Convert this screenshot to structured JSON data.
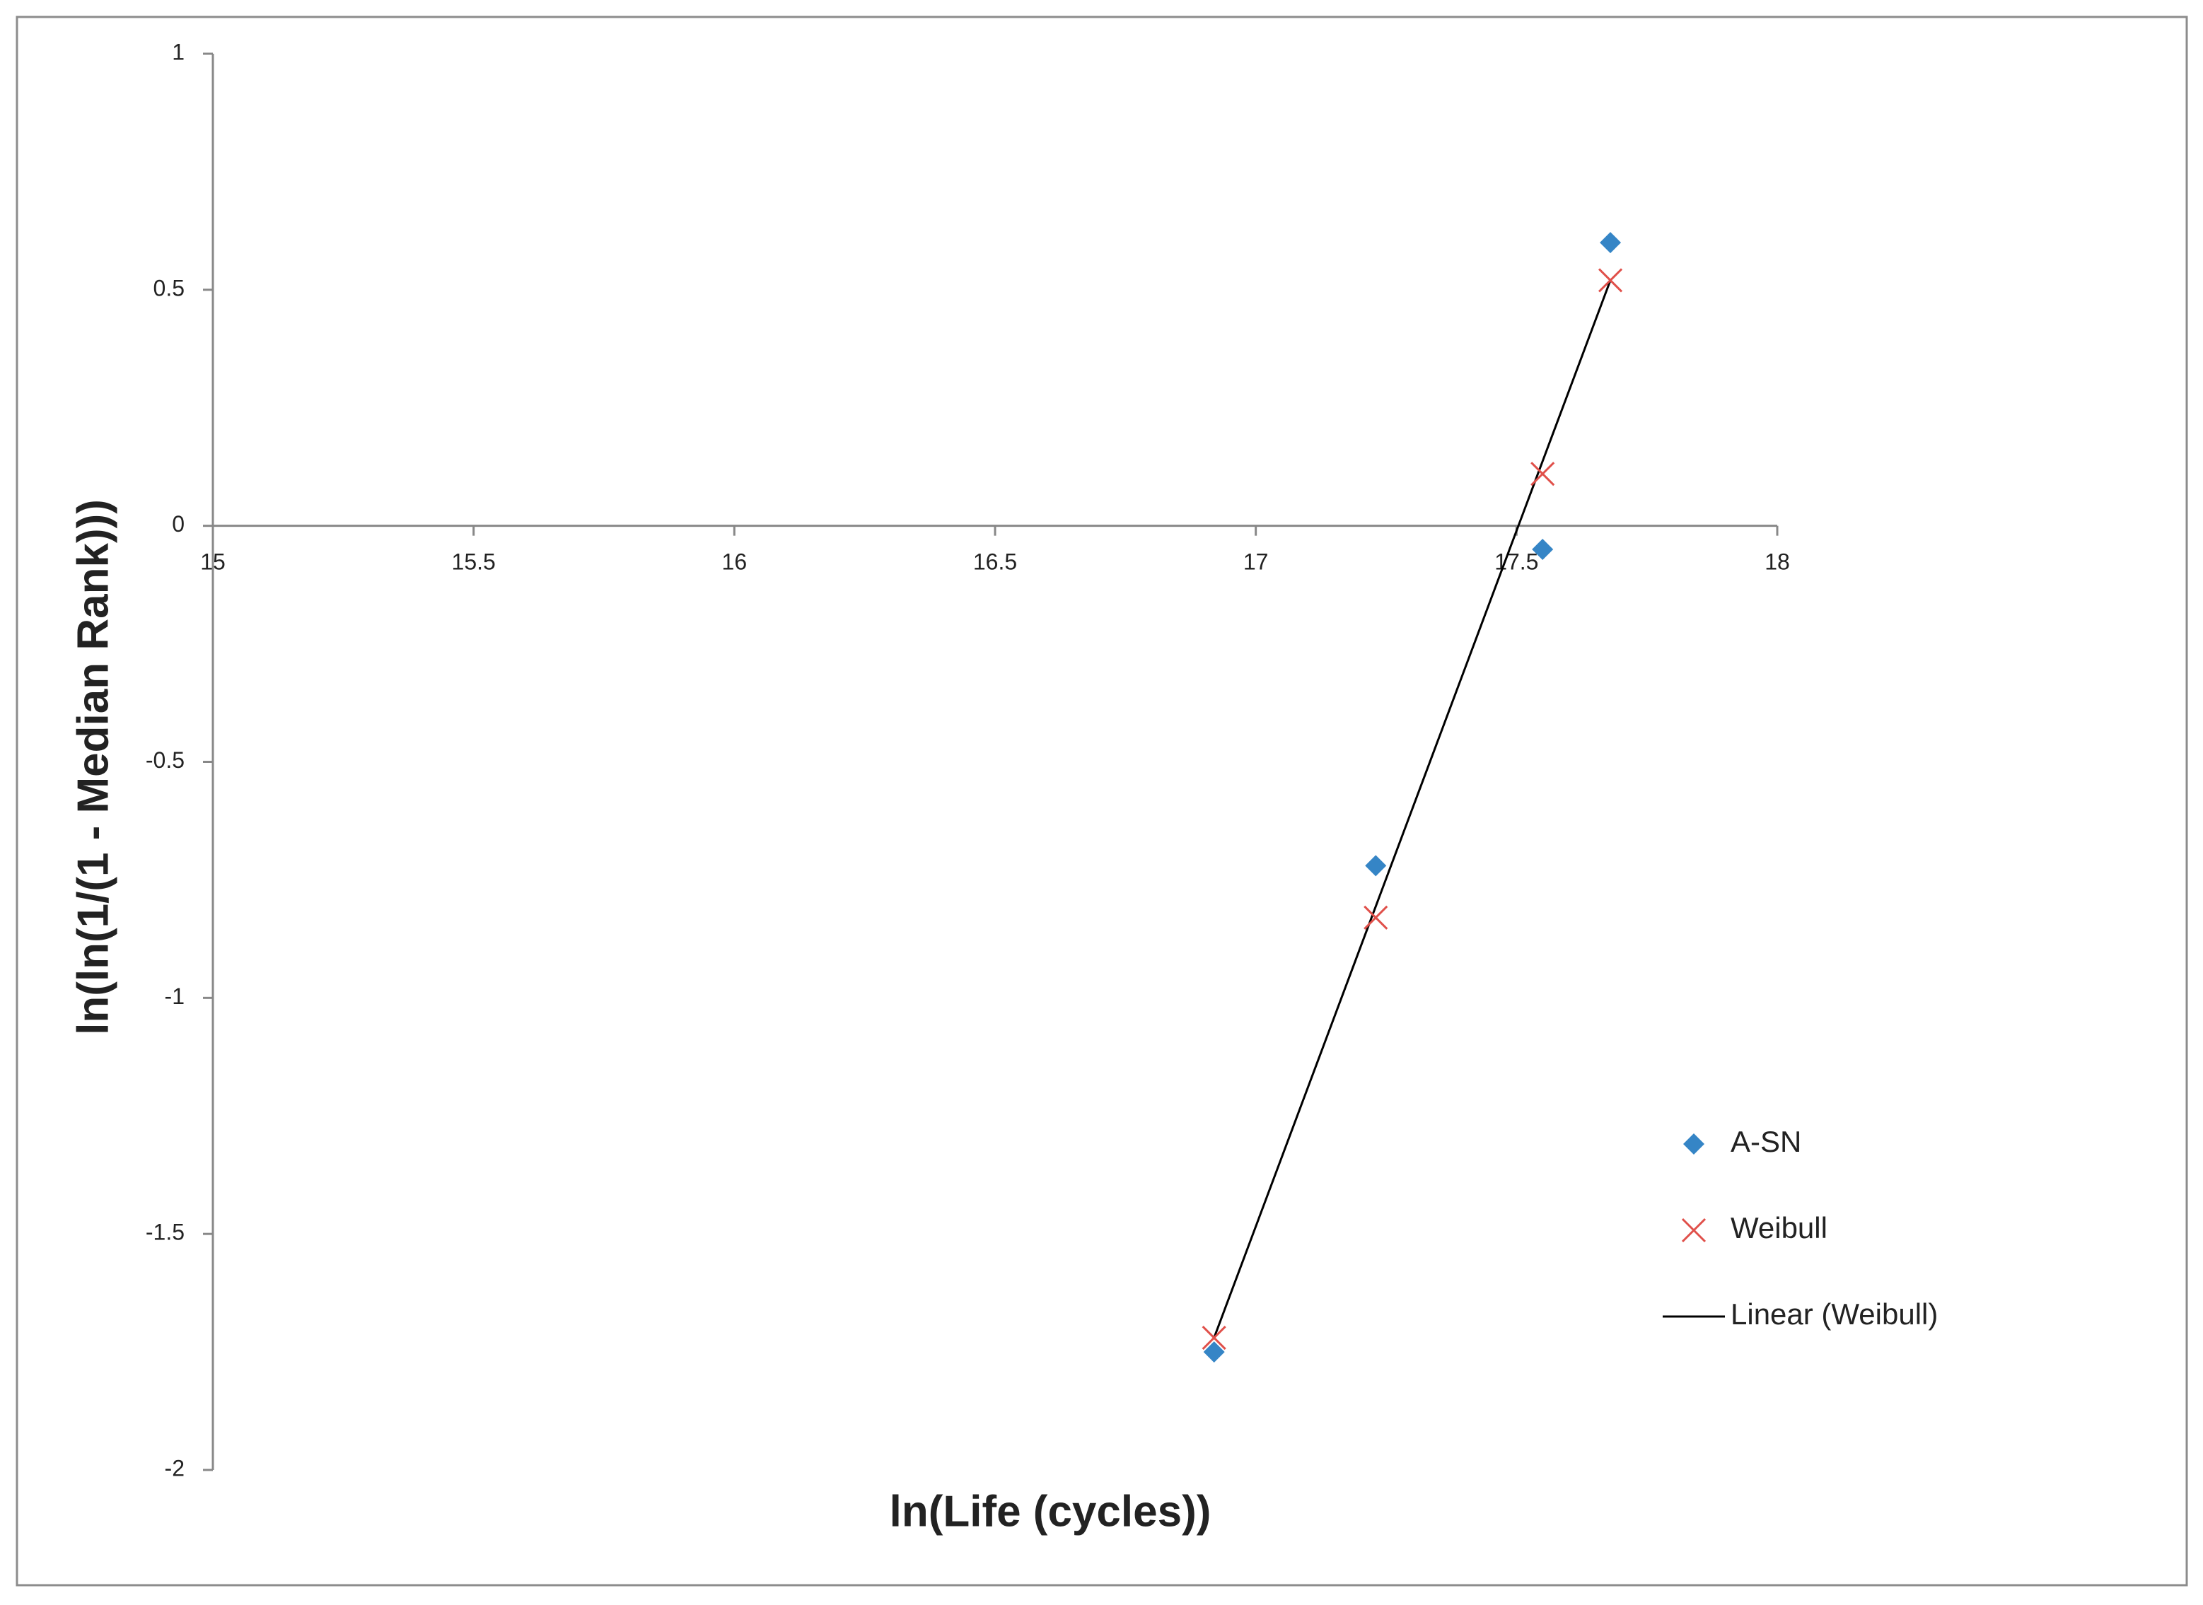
{
  "chart_data": {
    "type": "scatter",
    "x_label": "ln(Life (cycles))",
    "y_label": "ln(ln(1/(1 - Median Rank)))",
    "xlim": [
      15,
      18
    ],
    "xticks": [
      15,
      15.5,
      16,
      16.5,
      17,
      17.5,
      18
    ],
    "ylim": [
      -2,
      1
    ],
    "yticks": [
      -2,
      -1.5,
      -1,
      -0.5,
      0,
      0.5,
      1
    ],
    "legend": "right",
    "series": [
      {
        "name": "A-SN",
        "kind": "scatter",
        "marker": "diamond",
        "color": "#3585c6",
        "x": [
          16.92,
          17.23,
          17.55,
          17.68
        ],
        "values": [
          -1.75,
          -0.72,
          -0.05,
          0.6
        ]
      },
      {
        "name": "Weibull",
        "kind": "scatter",
        "marker": "x",
        "color": "#e0504a",
        "x": [
          16.92,
          17.23,
          17.55,
          17.68
        ],
        "values": [
          -1.72,
          -0.83,
          0.11,
          0.52
        ]
      },
      {
        "name": "Linear (Weibull)",
        "kind": "line",
        "color": "#000000",
        "x": [
          16.92,
          17.68
        ],
        "values": [
          -1.72,
          0.52
        ]
      }
    ]
  }
}
